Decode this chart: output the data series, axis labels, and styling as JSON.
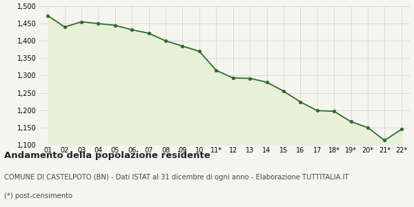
{
  "x_labels": [
    "01",
    "02",
    "03",
    "04",
    "05",
    "06",
    "07",
    "08",
    "09",
    "10",
    "11*",
    "12",
    "13",
    "14",
    "15",
    "16",
    "17",
    "18*",
    "19*",
    "20*",
    "21*",
    "22*"
  ],
  "y_values": [
    1473,
    1440,
    1455,
    1450,
    1445,
    1432,
    1422,
    1400,
    1385,
    1370,
    1315,
    1293,
    1292,
    1281,
    1255,
    1224,
    1199,
    1197,
    1167,
    1150,
    1113,
    1145
  ],
  "line_color": "#2d6a2d",
  "fill_color": "#e8f0d8",
  "marker_color": "#2d6a2d",
  "background_color": "#f5f5f0",
  "grid_color": "#cccccc",
  "ylim_min": 1100,
  "ylim_max": 1500,
  "ytick_step": 50,
  "title": "Andamento della popolazione residente",
  "subtitle": "COMUNE DI CASTELPOTO (BN) - Dati ISTAT al 31 dicembre di ogni anno - Elaborazione TUTTITALIA.IT",
  "footnote": "(*) post-censimento",
  "title_fontsize": 9.5,
  "subtitle_fontsize": 7.2,
  "footnote_fontsize": 7.2,
  "tick_fontsize": 7.0,
  "ytick_fontsize": 7.0
}
